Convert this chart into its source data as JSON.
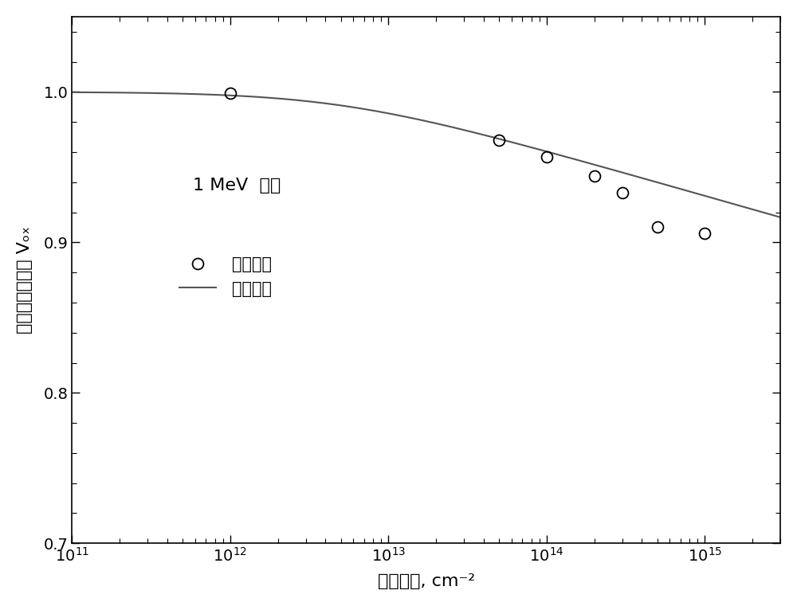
{
  "title": "",
  "xlabel": "电子注量, cm⁻²",
  "ylabel": "归一化开路电压 Vₒₓ",
  "xlim": [
    100000000000.0,
    3000000000000000.0
  ],
  "ylim": [
    0.7,
    1.05
  ],
  "yticks": [
    0.7,
    0.8,
    0.9,
    1.0
  ],
  "annotation": "1 MeV  电子",
  "legend_circle": "实验数据",
  "legend_line": "拟合曲线",
  "data_x": [
    1000000000000.0,
    50000000000000.0,
    100000000000000.0,
    200000000000000.0,
    300000000000000.0,
    500000000000000.0,
    1000000000000000.0
  ],
  "data_y": [
    0.999,
    0.968,
    0.957,
    0.944,
    0.933,
    0.91,
    0.906
  ],
  "line_color": "#555555",
  "marker_color": "#000000",
  "background_color": "#ffffff",
  "curve_param_a": 1.0,
  "curve_param_k": 0.03,
  "curve_param_x0": 5000000000000.0
}
